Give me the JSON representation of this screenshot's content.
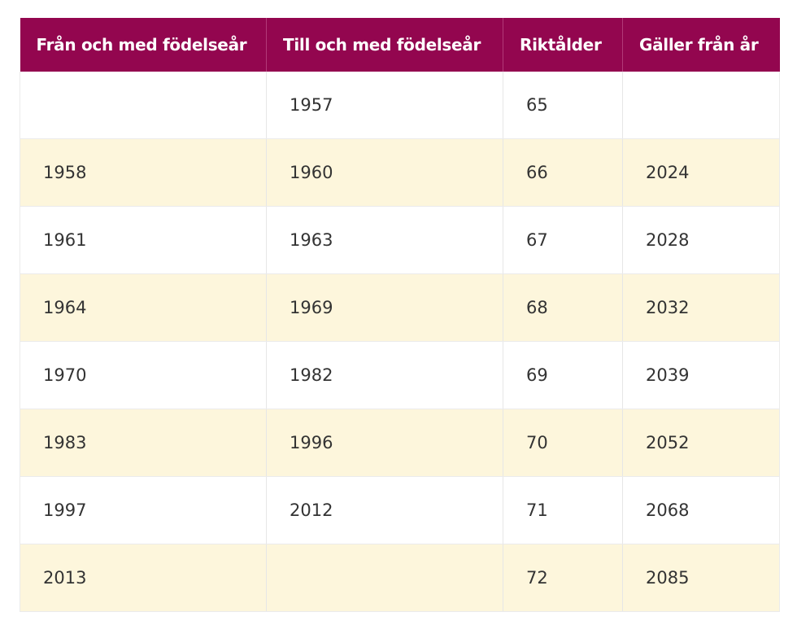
{
  "table": {
    "headers": [
      "Från och med födelseår",
      "Till och med födelseår",
      "Riktålder",
      "Gäller från år"
    ],
    "rows": [
      [
        "",
        "1957",
        "65",
        ""
      ],
      [
        "1958",
        "1960",
        "66",
        "2024"
      ],
      [
        "1961",
        "1963",
        "67",
        "2028"
      ],
      [
        "1964",
        "1969",
        "68",
        "2032"
      ],
      [
        "1970",
        "1982",
        "69",
        "2039"
      ],
      [
        "1983",
        "1996",
        "70",
        "2052"
      ],
      [
        "1997",
        "2012",
        "71",
        "2068"
      ],
      [
        "2013",
        "",
        "72",
        "2085"
      ]
    ]
  },
  "colors": {
    "header_bg": "#93064f",
    "header_text": "#ffffff",
    "row_alt_bg": "#fdf6dc",
    "row_bg": "#ffffff",
    "cell_text": "#333333"
  }
}
